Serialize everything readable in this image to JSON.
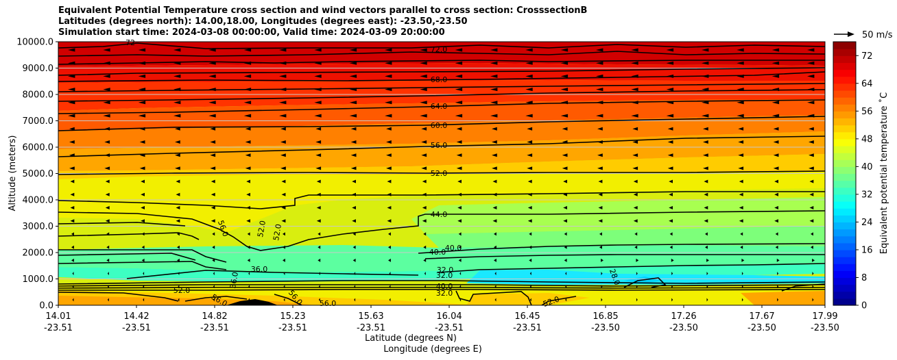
{
  "titles": {
    "line1": "Equivalent Potential Temperature cross section and wind vectors parallel to cross section: CrosssectionB",
    "line2": "Latitudes (degrees north): 14.00,18.00, Longitudes (degrees east): -23.50,-23.50",
    "line3": "Simulation start time: 2024-03-08 00:00:00, Valid time: 2024-03-09 20:00:00"
  },
  "chart_data": {
    "type": "heatmap",
    "subtype": "contourf cross-section with contour lines and wind vectors",
    "ylabel": "Altitude (meters)",
    "xlabel_lat": "Latitude (degrees N)",
    "xlabel_lon": "Longitude (degrees E)",
    "ylim": [
      0,
      10000
    ],
    "y_ticks": [
      "0.0",
      "1000.0",
      "2000.0",
      "3000.0",
      "4000.0",
      "5000.0",
      "6000.0",
      "7000.0",
      "8000.0",
      "9000.0",
      "10000.0"
    ],
    "x_ticks": [
      {
        "lat": "14.01",
        "lon": "-23.51"
      },
      {
        "lat": "14.42",
        "lon": "-23.51"
      },
      {
        "lat": "14.82",
        "lon": "-23.51"
      },
      {
        "lat": "15.23",
        "lon": "-23.51"
      },
      {
        "lat": "15.63",
        "lon": "-23.51"
      },
      {
        "lat": "16.04",
        "lon": "-23.51"
      },
      {
        "lat": "16.45",
        "lon": "-23.51"
      },
      {
        "lat": "16.85",
        "lon": "-23.50"
      },
      {
        "lat": "17.26",
        "lon": "-23.50"
      },
      {
        "lat": "17.67",
        "lon": "-23.50"
      },
      {
        "lat": "17.99",
        "lon": "-23.50"
      }
    ],
    "colorbar": {
      "label": "Equivalent potential temperature $^\\circ$C",
      "label_text": "Equivalent potential temperature ˚C",
      "range": [
        0,
        76
      ],
      "ticks": [
        "0",
        "8",
        "16",
        "24",
        "32",
        "40",
        "48",
        "56",
        "64",
        "72"
      ],
      "colormap": "jet"
    },
    "quiver_key": {
      "label": "50 m/s",
      "speed": 50
    },
    "contour_labels": [
      "72.0",
      "68.0",
      "64.0",
      "60.0",
      "56.0",
      "52.0",
      "44.0",
      "40.0",
      "40.0",
      "32.0",
      "32.0",
      "40.0",
      "32.0",
      "28.0",
      "52.0",
      "56.0",
      "56.0",
      "56.0",
      "52.0",
      "52.0",
      "56.0",
      "36.0",
      "36.0",
      "52.0",
      "72"
    ],
    "temperature_profile_summary": [
      {
        "altitude": 0,
        "value": 55
      },
      {
        "altitude": 600,
        "value": 50
      },
      {
        "altitude": 1000,
        "value": 36
      },
      {
        "altitude": 2000,
        "value": 40
      },
      {
        "altitude": 3000,
        "value": 46
      },
      {
        "altitude": 4000,
        "value": 48
      },
      {
        "altitude": 5000,
        "value": 52
      },
      {
        "altitude": 6000,
        "value": 56
      },
      {
        "altitude": 7000,
        "value": 60
      },
      {
        "altitude": 8000,
        "value": 65
      },
      {
        "altitude": 9000,
        "value": 70
      },
      {
        "altitude": 10000,
        "value": 74
      }
    ]
  }
}
